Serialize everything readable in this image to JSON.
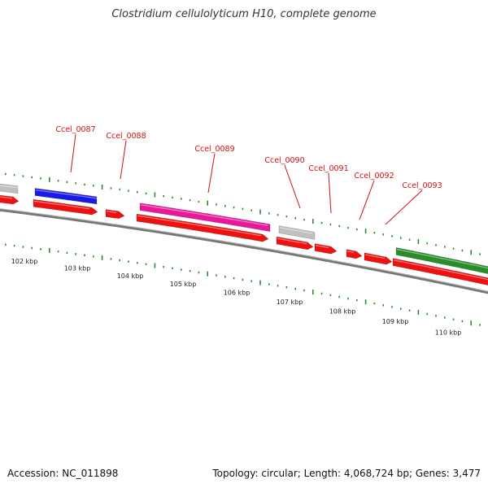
{
  "title": "Clostridium cellulolyticum H10, complete genome",
  "footer": {
    "accession": "Accession: NC_011898",
    "stats": "Topology: circular; Length: 4,068,724 bp; Genes: 3,477"
  },
  "colors": {
    "feature_red": "#ee1111",
    "blue_gene": "#1a1ae6",
    "pink_gene": "#e8189a",
    "gray_gene": "#c0c0c0",
    "green_gene": "#2a8c2a",
    "backbone": "#777777",
    "tick_green": "#2f8a2f",
    "label_red": "#d41010"
  },
  "genes": [
    {
      "name": "Ccel_0087",
      "color": "blue"
    },
    {
      "name": "Ccel_0088",
      "color": "red"
    },
    {
      "name": "Ccel_0089",
      "color": "pink"
    },
    {
      "name": "Ccel_0090",
      "color": "gray"
    },
    {
      "name": "Ccel_0091",
      "color": "red"
    },
    {
      "name": "Ccel_0092",
      "color": "red"
    },
    {
      "name": "Ccel_0093",
      "color": "red"
    }
  ],
  "kbp_labels": [
    "102 kbp",
    "103 kbp",
    "104 kbp",
    "105 kbp",
    "106 kbp",
    "107 kbp",
    "108 kbp",
    "109 kbp",
    "110 kbp"
  ]
}
